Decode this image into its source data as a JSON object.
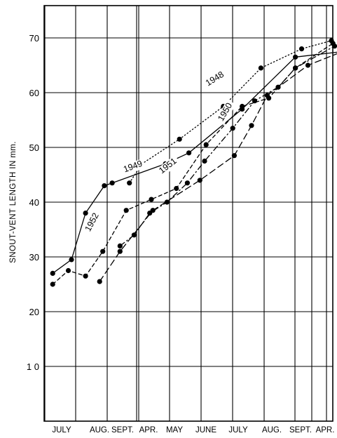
{
  "chart_data": {
    "type": "line",
    "title": "",
    "ylabel": "SNOUT-VENT LENGTH IN mm.",
    "xlabel": "",
    "ylim": [
      0,
      77
    ],
    "y_ticks": [
      10,
      20,
      30,
      40,
      50,
      60,
      70
    ],
    "y_tick_labels": [
      "1 0",
      "20",
      "30",
      "40",
      "50",
      "60",
      "70"
    ],
    "x_tick_labels": [
      "JULY",
      "AUG.",
      "SEPT.",
      "APR.",
      "MAY",
      "JUNE",
      "JULY",
      "AUG.",
      "SEPT.",
      "APR."
    ],
    "grid": true,
    "legend": "labels placed on lines",
    "series": [
      {
        "name": "1948",
        "style": "dotted",
        "points": [
          [
            2.7,
            43.5
          ],
          [
            3.1,
            47.0
          ],
          [
            4.3,
            51.5
          ],
          [
            5.7,
            57.5
          ],
          [
            6.9,
            64.5
          ],
          [
            8.2,
            68.0
          ],
          [
            9.15,
            69.5
          ]
        ]
      },
      {
        "name": "1949",
        "style": "solid",
        "points": [
          [
            0.25,
            27.0
          ],
          [
            0.85,
            29.5
          ],
          [
            1.3,
            38.0
          ],
          [
            1.9,
            43.0
          ],
          [
            2.15,
            43.5
          ],
          [
            3.85,
            47.0
          ],
          [
            4.6,
            49.0
          ],
          [
            6.3,
            57.0
          ],
          [
            8.0,
            66.5
          ],
          [
            9.5,
            67.5
          ]
        ]
      },
      {
        "name": "1950",
        "style": "long-dash",
        "points": [
          [
            1.75,
            25.5
          ],
          [
            2.4,
            31.0
          ],
          [
            3.45,
            38.5
          ],
          [
            4.95,
            44.0
          ],
          [
            6.05,
            48.5
          ],
          [
            6.6,
            54.0
          ],
          [
            7.1,
            59.5
          ],
          [
            8.4,
            65.0
          ],
          [
            9.5,
            67.5
          ]
        ]
      },
      {
        "name": "1951",
        "style": "dash-dot",
        "points": [
          [
            2.4,
            32.0
          ],
          [
            2.85,
            34.0
          ],
          [
            3.35,
            38.0
          ],
          [
            3.9,
            40.0
          ],
          [
            4.55,
            43.5
          ],
          [
            5.1,
            47.5
          ],
          [
            6.0,
            53.5
          ],
          [
            6.7,
            58.5
          ],
          [
            7.45,
            61.0
          ],
          [
            8.0,
            64.5
          ],
          [
            9.25,
            68.5
          ]
        ]
      },
      {
        "name": "1952",
        "style": "short-dash",
        "points": [
          [
            0.25,
            25.0
          ],
          [
            0.75,
            27.5
          ],
          [
            1.3,
            26.5
          ],
          [
            1.85,
            31.0
          ],
          [
            2.6,
            38.5
          ],
          [
            3.4,
            40.5
          ],
          [
            4.2,
            42.5
          ],
          [
            5.15,
            50.5
          ],
          [
            6.3,
            57.5
          ],
          [
            7.15,
            59.0
          ],
          [
            8.0,
            64.5
          ],
          [
            9.2,
            69.0
          ]
        ]
      }
    ],
    "series_labels": [
      {
        "name": "1948"
      },
      {
        "name": "1949"
      },
      {
        "name": "1950"
      },
      {
        "name": "1951"
      },
      {
        "name": "1952"
      }
    ]
  }
}
